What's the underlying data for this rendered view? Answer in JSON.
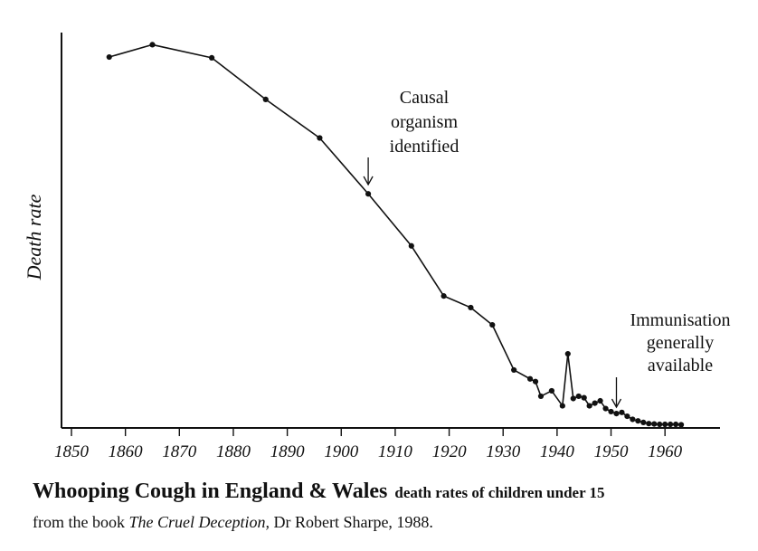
{
  "chart_data": {
    "type": "line",
    "title": "Whooping Cough in England & Wales",
    "subtitle": "death rates of children under 15",
    "xlabel": "",
    "ylabel": "Death rate",
    "xlim": [
      1850,
      1965
    ],
    "ylim": [
      0,
      100
    ],
    "grid": false,
    "x_ticks": [
      "1850",
      "1860",
      "1870",
      "1880",
      "1890",
      "1900",
      "1910",
      "1920",
      "1930",
      "1940",
      "1950",
      "1960"
    ],
    "series": [
      {
        "name": "Whooping cough death rate",
        "x": [
          1857,
          1865,
          1876,
          1886,
          1896,
          1905,
          1913,
          1919,
          1924,
          1928,
          1932,
          1935,
          1936,
          1937,
          1939,
          1941,
          1942,
          1943,
          1944,
          1945,
          1946,
          1947,
          1948,
          1949,
          1950,
          1951,
          1952,
          1953,
          1954,
          1955,
          1956,
          1957,
          1958,
          1959,
          1960,
          1961,
          1962,
          1963
        ],
        "values": [
          96.0,
          99.2,
          95.8,
          85.0,
          75.0,
          60.5,
          47.0,
          34.0,
          31.0,
          26.5,
          14.8,
          12.5,
          11.8,
          8.0,
          9.4,
          5.5,
          19.0,
          7.4,
          8.0,
          7.6,
          5.5,
          6.2,
          6.8,
          4.8,
          4.0,
          3.5,
          3.8,
          2.8,
          2.0,
          1.6,
          1.2,
          0.9,
          0.8,
          0.7,
          0.7,
          0.7,
          0.7,
          0.6
        ]
      }
    ],
    "annotations": [
      {
        "lines": [
          "Causal",
          "organism",
          "identified"
        ],
        "x": 1905
      },
      {
        "lines": [
          "Immunisation",
          "generally",
          "available"
        ],
        "x": 1951
      }
    ]
  },
  "caption": {
    "title": "Whooping Cough in England & Wales",
    "subtitle": "death rates of children under 15",
    "source_prefix": "from the book ",
    "source_book": "The Cruel Deception,",
    "source_suffix": " Dr Robert Sharpe, 1988."
  }
}
